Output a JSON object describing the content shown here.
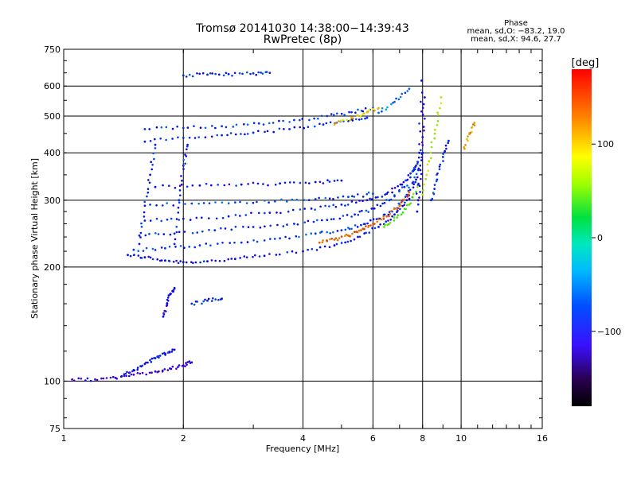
{
  "chart_data": {
    "type": "scatter",
    "title": "Tromsø 20141030 14:38:00−14:39:43",
    "subtitle": "RwPretec (8p)",
    "xlabel": "Frequency [MHz]",
    "ylabel": "Stationary phase Virtual Height [km]",
    "xscale": "log",
    "yscale": "log",
    "xlim": [
      1,
      16
    ],
    "ylim": [
      75,
      750
    ],
    "x_ticks": [
      "1",
      "2",
      "4",
      "6",
      "8",
      "10",
      "16"
    ],
    "y_ticks": [
      "75",
      "100",
      "200",
      "300",
      "400",
      "500",
      "600",
      "750"
    ],
    "grid": true,
    "stats": {
      "title": "Phase",
      "line1": "mean, sd,O: −83.2, 19.0",
      "line2": "mean, sd,X:  94.6, 27.7"
    },
    "colorbar": {
      "label": "[deg]",
      "range": [
        -180,
        180
      ],
      "ticks": [
        "100",
        "0",
        "−100"
      ]
    },
    "traces": [
      {
        "x": [
          1.45,
          1.6,
          1.8,
          2.0,
          2.3,
          2.7,
          3.2,
          4.0,
          4.8,
          5.5,
          6.2,
          6.8,
          7.3,
          7.7
        ],
        "y": [
          215,
          212,
          208,
          206,
          207,
          210,
          214,
          220,
          228,
          240,
          255,
          275,
          300,
          340
        ],
        "phase": -110
      },
      {
        "x": [
          1.5,
          1.8,
          2.2,
          2.8,
          3.5,
          4.3,
          5.0,
          5.6,
          6.2,
          6.8,
          7.3,
          7.8
        ],
        "y": [
          222,
          224,
          228,
          232,
          238,
          245,
          250,
          258,
          268,
          285,
          310,
          360
        ],
        "phase": -95
      },
      {
        "x": [
          1.55,
          1.9,
          2.4,
          3.0,
          3.8,
          4.6,
          5.4,
          6.0,
          6.6,
          7.2,
          7.7
        ],
        "y": [
          242,
          245,
          250,
          255,
          260,
          266,
          275,
          285,
          300,
          325,
          370
        ],
        "phase": -100
      },
      {
        "x": [
          1.6,
          2.0,
          2.6,
          3.3,
          4.2,
          5.0,
          5.8,
          6.5,
          7.1,
          7.6,
          8.0
        ],
        "y": [
          265,
          268,
          272,
          278,
          285,
          292,
          300,
          312,
          330,
          360,
          400
        ],
        "phase": -105
      },
      {
        "x": [
          1.65,
          2.1,
          2.7,
          3.4,
          4.3,
          5.2,
          6.0
        ],
        "y": [
          292,
          294,
          296,
          298,
          302,
          306,
          312
        ],
        "phase": -90
      },
      {
        "x": [
          1.7,
          2.2,
          2.8,
          3.5,
          4.3,
          5.0
        ],
        "y": [
          325,
          328,
          330,
          332,
          335,
          338
        ],
        "phase": -110
      },
      {
        "x": [
          1.6,
          2.0,
          2.5,
          3.0,
          3.7,
          4.5,
          5.2,
          5.8
        ],
        "y": [
          428,
          438,
          445,
          452,
          462,
          475,
          485,
          495
        ],
        "phase": -100
      },
      {
        "x": [
          1.6,
          2.0,
          2.5,
          3.1,
          3.8,
          4.6,
          5.3,
          6.0
        ],
        "y": [
          462,
          465,
          470,
          478,
          488,
          500,
          512,
          525
        ],
        "phase": -95
      },
      {
        "x": [
          4.8,
          5.3,
          5.8,
          6.2
        ],
        "y": [
          475,
          495,
          512,
          525
        ],
        "phase": 120
      },
      {
        "x": [
          6.2,
          6.8,
          7.4
        ],
        "y": [
          510,
          545,
          590
        ],
        "phase": -80
      },
      {
        "x": [
          2.0,
          2.3,
          2.6,
          3.0,
          3.3
        ],
        "y": [
          640,
          643,
          645,
          648,
          650
        ],
        "phase": -100
      },
      {
        "x": [
          4.4,
          4.8,
          5.2,
          5.6,
          6.0,
          6.5,
          7.0,
          7.4
        ],
        "y": [
          232,
          236,
          242,
          250,
          260,
          272,
          290,
          315
        ],
        "phase": 150
      },
      {
        "x": [
          6.4,
          6.9,
          7.4,
          7.8
        ],
        "y": [
          255,
          270,
          292,
          330
        ],
        "phase": 60
      },
      {
        "x": [
          7.8,
          7.9,
          8.0,
          8.1
        ],
        "y": [
          300,
          360,
          440,
          560
        ],
        "phase": -120
      },
      {
        "x": [
          7.75,
          7.85,
          7.95
        ],
        "y": [
          280,
          400,
          620
        ],
        "phase": -110
      },
      {
        "x": [
          8.0,
          8.3,
          8.6,
          8.9
        ],
        "y": [
          310,
          380,
          460,
          560
        ],
        "phase": 90
      },
      {
        "x": [
          8.4,
          8.7,
          9.0,
          9.3
        ],
        "y": [
          300,
          340,
          390,
          430
        ],
        "phase": -100
      },
      {
        "x": [
          10.2,
          10.5,
          10.8
        ],
        "y": [
          410,
          450,
          480
        ],
        "phase": 130
      },
      {
        "x": [
          1.55,
          1.6,
          1.65,
          1.7
        ],
        "y": [
          230,
          290,
          350,
          420
        ],
        "phase": -105
      },
      {
        "x": [
          1.9,
          1.95,
          2.0,
          2.05
        ],
        "y": [
          230,
          300,
          370,
          420
        ],
        "phase": -100
      },
      {
        "x": [
          1.05,
          1.2,
          1.35,
          1.5,
          1.7,
          1.85,
          2.0,
          2.1
        ],
        "y": [
          101,
          101,
          102,
          104,
          106,
          108,
          110,
          112
        ],
        "phase": -130
      },
      {
        "x": [
          1.4,
          1.5,
          1.6,
          1.7,
          1.8,
          1.9
        ],
        "y": [
          103,
          107,
          111,
          115,
          118,
          121
        ],
        "phase": -110
      },
      {
        "x": [
          1.78,
          1.82,
          1.86,
          1.9
        ],
        "y": [
          148,
          160,
          170,
          176
        ],
        "phase": -120
      },
      {
        "x": [
          2.1,
          2.3,
          2.5
        ],
        "y": [
          160,
          163,
          165
        ],
        "phase": -100
      }
    ]
  }
}
